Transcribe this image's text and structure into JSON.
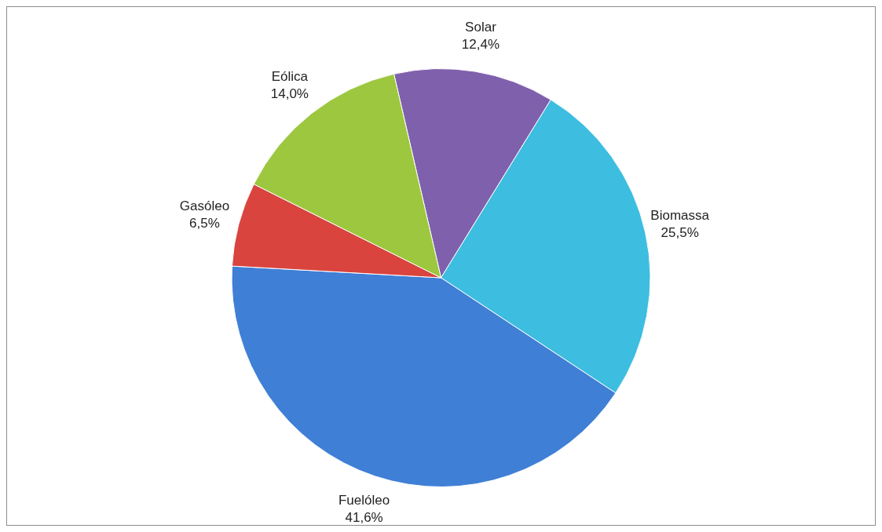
{
  "chart_data": {
    "type": "pie",
    "categories": [
      "Solar",
      "Biomassa",
      "Fuelóleo",
      "Gasóleo",
      "Eólica"
    ],
    "values": [
      12.4,
      25.5,
      41.6,
      6.5,
      14.0
    ],
    "value_labels": [
      "12,4%",
      "25,5%",
      "41,6%",
      "6,5%",
      "14,0%"
    ],
    "colors": [
      "#7f60ad",
      "#3dbde0",
      "#3f7fd6",
      "#d9443f",
      "#9cc73f"
    ],
    "legend": false
  }
}
